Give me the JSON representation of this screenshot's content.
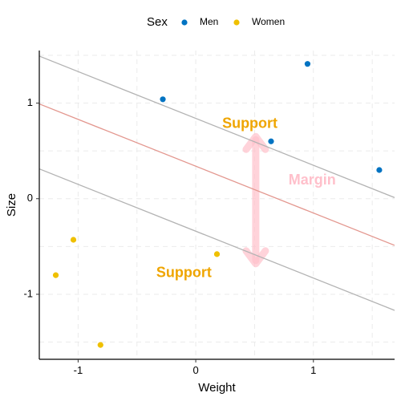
{
  "chart_data": {
    "type": "scatter",
    "title": "",
    "xlabel": "Weight",
    "ylabel": "Size",
    "xlim": [
      -1.33,
      1.69
    ],
    "ylim": [
      -1.68,
      1.55
    ],
    "xticks": [
      -1,
      0,
      1
    ],
    "yticks": [
      -1,
      0,
      1
    ],
    "grid": true,
    "legend": {
      "title": "Sex",
      "position": "top",
      "entries": [
        {
          "label": "Men",
          "color": "#0073C2"
        },
        {
          "label": "Women",
          "color": "#EFC000"
        }
      ]
    },
    "series": [
      {
        "name": "Men",
        "color": "#0073C2",
        "points": [
          {
            "x": -0.28,
            "y": 1.04
          },
          {
            "x": 0.95,
            "y": 1.41
          },
          {
            "x": 0.64,
            "y": 0.6
          },
          {
            "x": 1.56,
            "y": 0.3
          }
        ]
      },
      {
        "name": "Women",
        "color": "#EFC000",
        "points": [
          {
            "x": -1.04,
            "y": -0.43
          },
          {
            "x": -1.19,
            "y": -0.8
          },
          {
            "x": 0.18,
            "y": -0.58
          },
          {
            "x": -0.81,
            "y": -1.53
          }
        ]
      }
    ],
    "lines": [
      {
        "role": "upper-margin",
        "intercept": 0.84,
        "slope": -0.49,
        "color": "#B3B3B3"
      },
      {
        "role": "decision-boundary",
        "intercept": 0.34,
        "slope": -0.49,
        "color": "#E3978F"
      },
      {
        "role": "lower-margin",
        "intercept": -0.34,
        "slope": -0.49,
        "color": "#B3B3B3"
      }
    ],
    "annotations": [
      {
        "text": "Support",
        "x": 0.46,
        "y": 0.78,
        "color": "#EFA500"
      },
      {
        "text": "Support",
        "x": -0.1,
        "y": -0.78,
        "color": "#EFA500"
      },
      {
        "text": "Margin",
        "x": 0.99,
        "y": 0.19,
        "color": "#FFC0CB"
      }
    ],
    "arrow": {
      "x": 0.51,
      "y_start": 0.65,
      "y_end": -0.68,
      "color": "#FFC0CB",
      "double_headed": true
    }
  }
}
